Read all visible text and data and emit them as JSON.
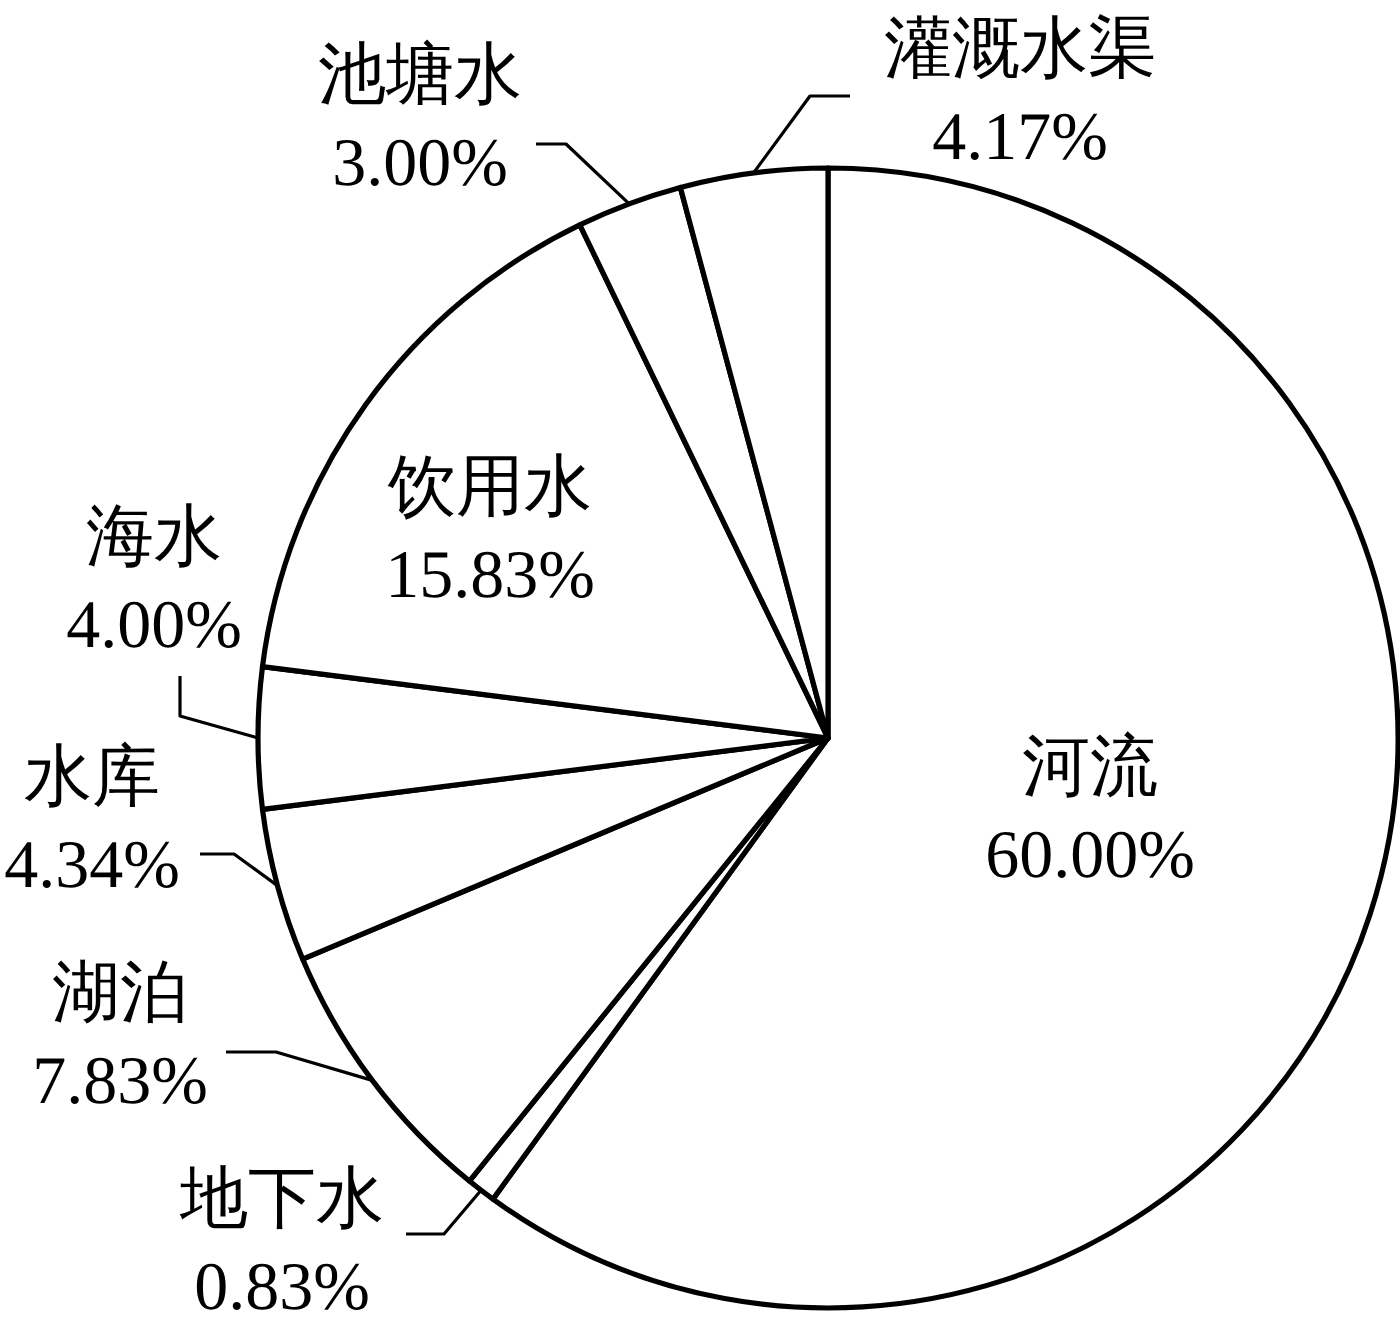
{
  "chart_data": {
    "type": "pie",
    "categories": [
      "河流",
      "地下水",
      "湖泊",
      "水库",
      "海水",
      "饮用水",
      "池塘水",
      "灌溉水渠"
    ],
    "values": [
      60.0,
      0.83,
      7.83,
      4.34,
      4.0,
      15.83,
      3.0,
      4.17
    ],
    "value_labels": [
      "60.00%",
      "0.83%",
      "7.83%",
      "4.34%",
      "4.00%",
      "15.83%",
      "3.00%",
      "4.17%"
    ],
    "colors": [
      "#ffffff",
      "#ffffff",
      "#ffffff",
      "#ffffff",
      "#ffffff",
      "#ffffff",
      "#ffffff",
      "#ffffff"
    ]
  }
}
